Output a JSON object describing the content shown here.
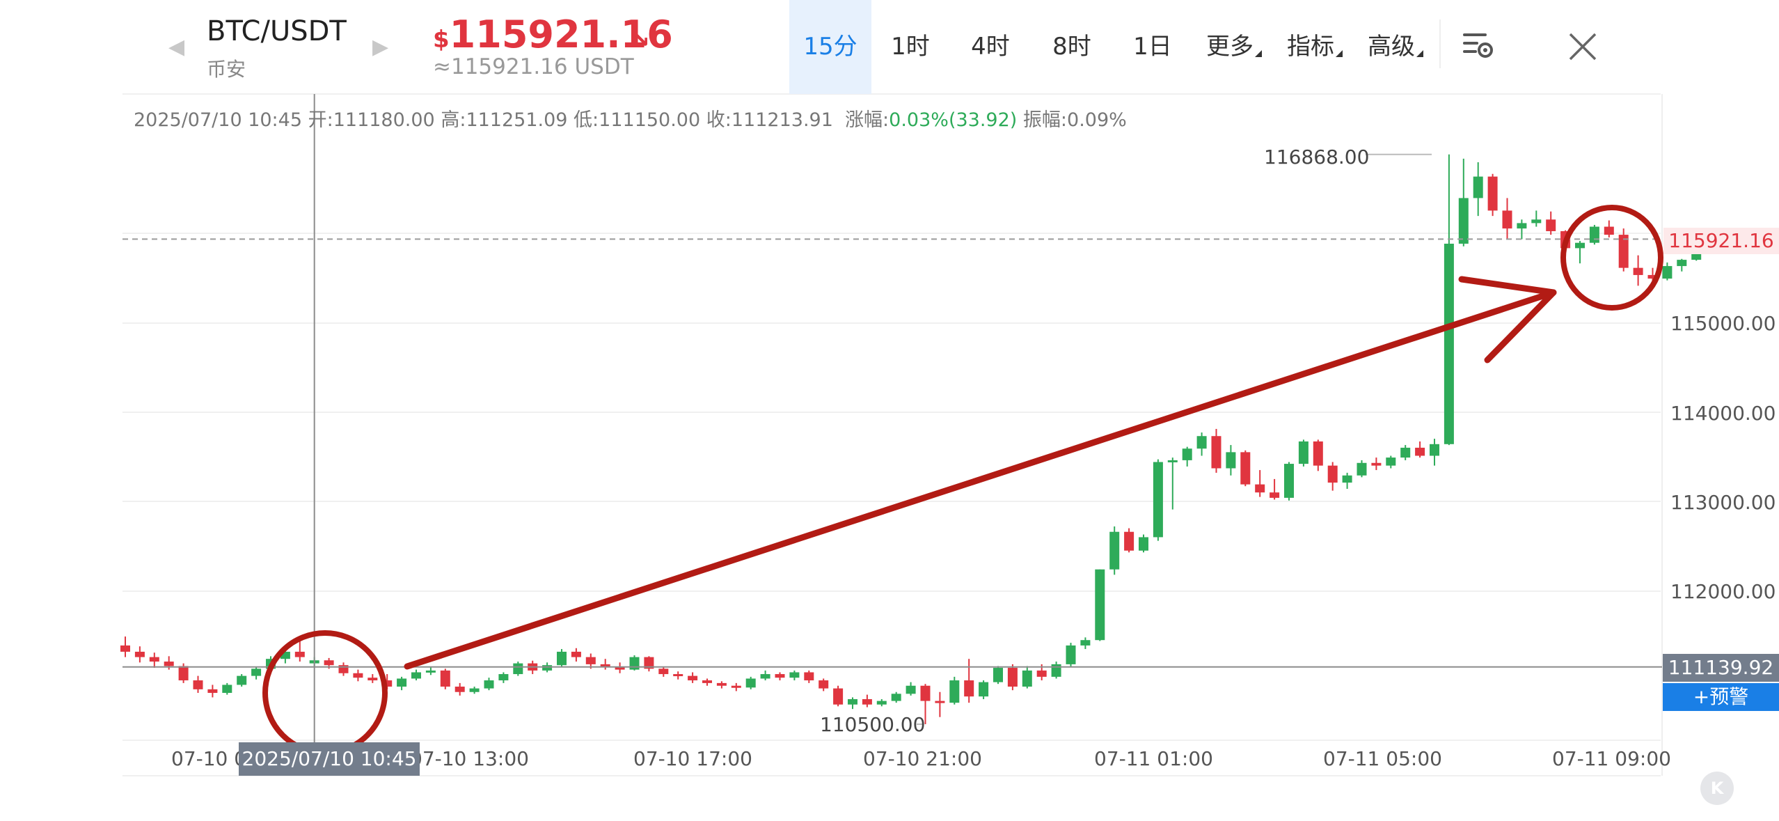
{
  "header": {
    "pair": "BTC/USDT",
    "exchange": "币安",
    "price_currency": "$",
    "price": "115921.16",
    "price_usdt": "≈115921.16 USDT",
    "trend_icon": "arrow-down-right-icon",
    "tabs": [
      {
        "label": "15分",
        "active": true,
        "dropdown": false
      },
      {
        "label": "1时",
        "active": false,
        "dropdown": false
      },
      {
        "label": "4时",
        "active": false,
        "dropdown": false
      },
      {
        "label": "8时",
        "active": false,
        "dropdown": false
      },
      {
        "label": "1日",
        "active": false,
        "dropdown": false
      },
      {
        "label": "更多",
        "active": false,
        "dropdown": true
      },
      {
        "label": "指标",
        "active": false,
        "dropdown": true
      },
      {
        "label": "高级",
        "active": false,
        "dropdown": true
      }
    ]
  },
  "info_line": {
    "datetime": "2025/07/10 10:45",
    "open_label": "开:",
    "open": "111180.00",
    "high_label": "高:",
    "high": "111251.09",
    "low_label": "低:",
    "low": "111150.00",
    "close_label": "收:",
    "close": "111213.91",
    "change_label": "涨幅:",
    "change": "0.03%(33.92)",
    "amplitude_label": "振幅:",
    "amplitude": "0.09%"
  },
  "chart_data": {
    "type": "candlestick",
    "y_ticks": [
      "115000.00",
      "114000.00",
      "113000.00",
      "112000.00"
    ],
    "x_ticks": [
      "07-10 09:00",
      "07-10 13:00",
      "07-10 17:00",
      "07-10 21:00",
      "07-11 01:00",
      "07-11 05:00",
      "07-11 09:00"
    ],
    "high_annotation": "116868.00",
    "low_annotation": "110500.00",
    "current_price_tag": "115921.16",
    "crosshair_price": "111139.92",
    "crosshair_time": "2025/07/10 10:45",
    "alert_label": "+预警",
    "up_color": "#2eab59",
    "down_color": "#e0353f",
    "annotation_color": "#b21b14",
    "candles": [
      [
        111380,
        111480,
        111250,
        111310
      ],
      [
        111310,
        111370,
        111190,
        111250
      ],
      [
        111250,
        111300,
        111130,
        111200
      ],
      [
        111200,
        111260,
        111110,
        111150
      ],
      [
        111150,
        111180,
        110960,
        110990
      ],
      [
        110990,
        111040,
        110850,
        110890
      ],
      [
        110890,
        110940,
        110800,
        110850
      ],
      [
        110850,
        110960,
        110830,
        110940
      ],
      [
        110940,
        111060,
        110920,
        111040
      ],
      [
        111040,
        111140,
        111000,
        111120
      ],
      [
        111120,
        111260,
        111090,
        111230
      ],
      [
        111230,
        111340,
        111180,
        111310
      ],
      [
        111310,
        111470,
        111200,
        111250
      ],
      [
        111180,
        111251,
        111150,
        111214
      ],
      [
        111214,
        111240,
        111120,
        111160
      ],
      [
        111160,
        111190,
        111040,
        111070
      ],
      [
        111070,
        111110,
        110980,
        111020
      ],
      [
        111020,
        111060,
        110960,
        110990
      ],
      [
        110990,
        111060,
        110890,
        110920
      ],
      [
        110920,
        111030,
        110880,
        111010
      ],
      [
        111010,
        111110,
        110990,
        111080
      ],
      [
        111080,
        111140,
        111050,
        111100
      ],
      [
        111100,
        111120,
        110890,
        110920
      ],
      [
        110920,
        110960,
        110820,
        110860
      ],
      [
        110860,
        110920,
        110840,
        110900
      ],
      [
        110900,
        111020,
        110880,
        110990
      ],
      [
        110990,
        111080,
        110960,
        111060
      ],
      [
        111060,
        111200,
        111040,
        111180
      ],
      [
        111180,
        111210,
        111060,
        111100
      ],
      [
        111100,
        111190,
        111080,
        111160
      ],
      [
        111160,
        111340,
        111140,
        111310
      ],
      [
        111310,
        111350,
        111200,
        111250
      ],
      [
        111250,
        111290,
        111120,
        111170
      ],
      [
        111170,
        111230,
        111110,
        111140
      ],
      [
        111140,
        111190,
        111070,
        111110
      ],
      [
        111110,
        111270,
        111100,
        111250
      ],
      [
        111250,
        111260,
        111090,
        111120
      ],
      [
        111120,
        111140,
        111030,
        111060
      ],
      [
        111060,
        111090,
        111000,
        111040
      ],
      [
        111040,
        111080,
        110960,
        110990
      ],
      [
        110990,
        111010,
        110930,
        110960
      ],
      [
        110960,
        110980,
        110900,
        110930
      ],
      [
        110930,
        110960,
        110870,
        110910
      ],
      [
        110910,
        111030,
        110890,
        111010
      ],
      [
        111010,
        111100,
        110990,
        111060
      ],
      [
        111060,
        111080,
        110990,
        111020
      ],
      [
        111020,
        111100,
        110990,
        111080
      ],
      [
        111080,
        111100,
        110960,
        110990
      ],
      [
        110990,
        111010,
        110870,
        110900
      ],
      [
        110900,
        110930,
        110700,
        110720
      ],
      [
        110720,
        110800,
        110670,
        110780
      ],
      [
        110780,
        110830,
        110690,
        110720
      ],
      [
        110720,
        110780,
        110700,
        110760
      ],
      [
        110760,
        110860,
        110740,
        110840
      ],
      [
        110840,
        110970,
        110820,
        110930
      ],
      [
        110930,
        110950,
        110500,
        110760
      ],
      [
        110760,
        110860,
        110580,
        110740
      ],
      [
        110740,
        111030,
        110720,
        110990
      ],
      [
        110990,
        111230,
        110740,
        110810
      ],
      [
        110810,
        110990,
        110780,
        110970
      ],
      [
        110970,
        111150,
        110950,
        111130
      ],
      [
        111130,
        111170,
        110880,
        110920
      ],
      [
        110920,
        111150,
        110900,
        111100
      ],
      [
        111100,
        111170,
        110990,
        111030
      ],
      [
        111030,
        111200,
        111010,
        111170
      ],
      [
        111170,
        111410,
        111140,
        111380
      ],
      [
        111380,
        111470,
        111340,
        111440
      ],
      [
        111440,
        112230,
        111430,
        112230
      ],
      [
        112230,
        112710,
        112170,
        112650
      ],
      [
        112650,
        112690,
        112420,
        112440
      ],
      [
        112440,
        112620,
        112420,
        112590
      ],
      [
        112590,
        113460,
        112550,
        113430
      ],
      [
        113430,
        113480,
        112900,
        113450
      ],
      [
        113450,
        113600,
        113380,
        113580
      ],
      [
        113580,
        113760,
        113500,
        113720
      ],
      [
        113720,
        113800,
        113310,
        113360
      ],
      [
        113360,
        113620,
        113280,
        113540
      ],
      [
        113540,
        113560,
        113160,
        113180
      ],
      [
        113180,
        113340,
        113040,
        113090
      ],
      [
        113090,
        113240,
        113010,
        113030
      ],
      [
        113030,
        113430,
        113000,
        113410
      ],
      [
        113410,
        113680,
        113380,
        113660
      ],
      [
        113660,
        113680,
        113330,
        113390
      ],
      [
        113390,
        113430,
        113110,
        113200
      ],
      [
        113200,
        113310,
        113130,
        113280
      ],
      [
        113280,
        113450,
        113260,
        113420
      ],
      [
        113420,
        113480,
        113340,
        113390
      ],
      [
        113390,
        113500,
        113360,
        113480
      ],
      [
        113480,
        113620,
        113450,
        113590
      ],
      [
        113590,
        113660,
        113480,
        113500
      ],
      [
        113500,
        113690,
        113390,
        113630
      ],
      [
        113630,
        116868,
        113620,
        115870
      ],
      [
        115870,
        116820,
        115840,
        116380
      ],
      [
        116380,
        116780,
        116180,
        116620
      ],
      [
        116620,
        116650,
        116180,
        116240
      ],
      [
        116240,
        116380,
        115920,
        116040
      ],
      [
        116040,
        116140,
        115920,
        116100
      ],
      [
        116100,
        116240,
        116060,
        116140
      ],
      [
        116140,
        116230,
        115970,
        116010
      ],
      [
        116010,
        116020,
        115790,
        115820
      ],
      [
        115820,
        115900,
        115650,
        115880
      ],
      [
        115880,
        116080,
        115860,
        116060
      ],
      [
        116060,
        116130,
        115940,
        115970
      ],
      [
        115970,
        116040,
        115560,
        115600
      ],
      [
        115600,
        115740,
        115400,
        115520
      ],
      [
        115520,
        115600,
        115410,
        115480
      ],
      [
        115480,
        115660,
        115460,
        115620
      ],
      [
        115620,
        115700,
        115560,
        115690
      ],
      [
        115690,
        115910,
        115680,
        115890
      ],
      [
        115890,
        115960,
        115820,
        115930
      ],
      [
        115930,
        115960,
        115860,
        115921
      ]
    ]
  }
}
